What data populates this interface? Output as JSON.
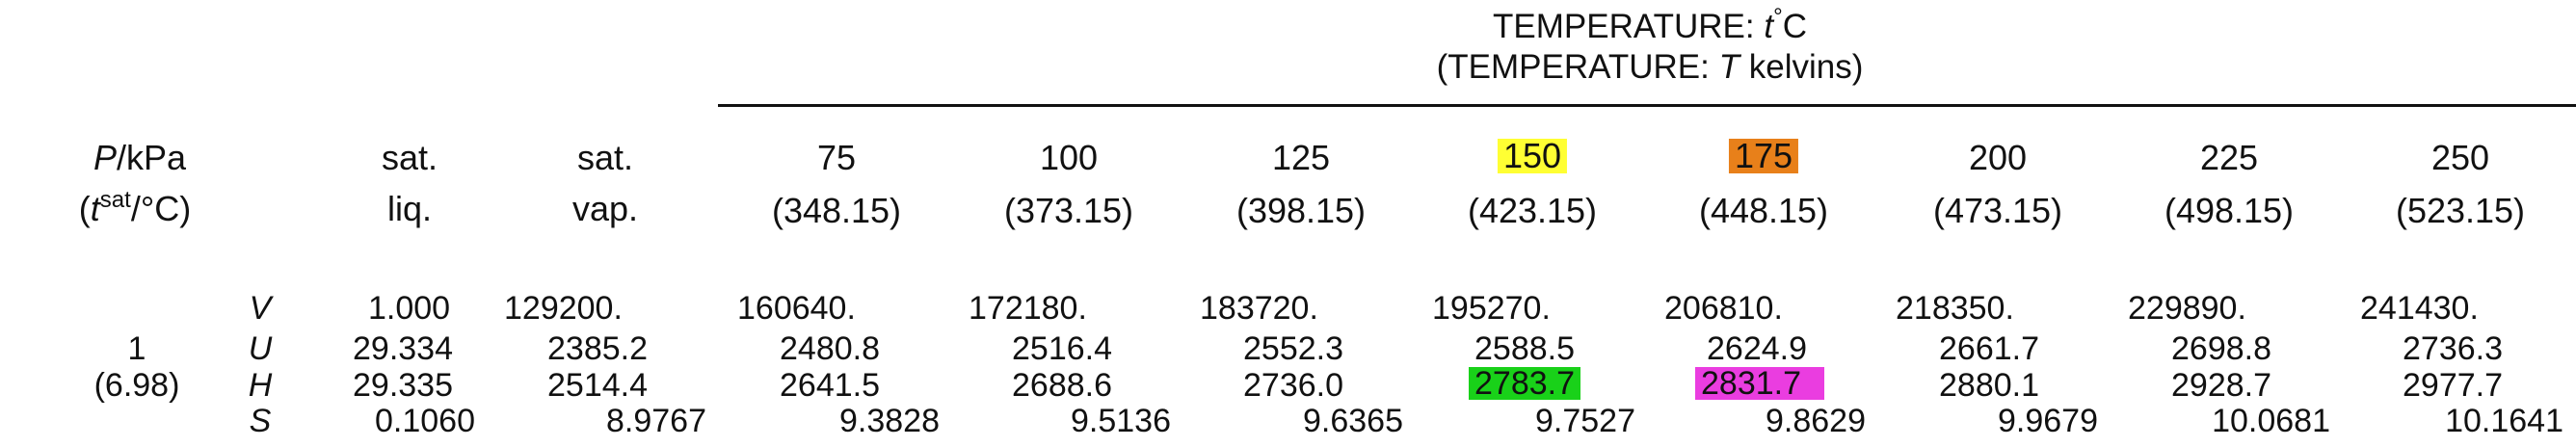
{
  "header": {
    "title_prefix": "TEMPERATURE: ",
    "title_var": "t",
    "title_deg": "°",
    "title_unit": "C",
    "subtitle_prefix": "(TEMPERATURE: ",
    "subtitle_var": "T",
    "subtitle_suffix": " kelvins)"
  },
  "stub": {
    "p_var": "P",
    "p_unit": "/kPa",
    "tsat_open": "(",
    "tsat_var": "t",
    "tsat_sup": "sat",
    "tsat_unit": "/°C)"
  },
  "columns": {
    "sat_liq": [
      "sat.",
      "liq."
    ],
    "sat_vap": [
      "sat.",
      "vap."
    ],
    "temps": [
      {
        "c": "75",
        "k": "(348.15)"
      },
      {
        "c": "100",
        "k": "(373.15)"
      },
      {
        "c": "125",
        "k": "(398.15)"
      },
      {
        "c": "150",
        "k": "(423.15)"
      },
      {
        "c": "175",
        "k": "(448.15)"
      },
      {
        "c": "200",
        "k": "(473.15)"
      },
      {
        "c": "225",
        "k": "(498.15)"
      },
      {
        "c": "250",
        "k": "(523.15)"
      }
    ]
  },
  "block": {
    "pressure": "1",
    "tsat": "(6.98)",
    "props": [
      "V",
      "U",
      "H",
      "S"
    ],
    "rows": {
      "V": [
        "1.000",
        "129200.",
        "160640.",
        "172180.",
        "183720.",
        "195270.",
        "206810.",
        "218350.",
        "229890.",
        "241430."
      ],
      "U": [
        "29.334",
        "2385.2",
        "2480.8",
        "2516.4",
        "2552.3",
        "2588.5",
        "2624.9",
        "2661.7",
        "2698.8",
        "2736.3"
      ],
      "H": [
        "29.335",
        "2514.4",
        "2641.5",
        "2688.6",
        "2736.0",
        "2783.7",
        "2831.7",
        "2880.1",
        "2928.7",
        "2977.7"
      ],
      "S": [
        "0.1060",
        "8.9767",
        "9.3828",
        "9.5136",
        "9.6365",
        "9.7527",
        "9.8629",
        "9.9679",
        "10.0681",
        "10.1641"
      ]
    }
  },
  "highlights": {
    "col_150": "#ffff33",
    "col_175": "#e8801a",
    "h_150": "#19d119",
    "h_175": "#ea3de0"
  }
}
